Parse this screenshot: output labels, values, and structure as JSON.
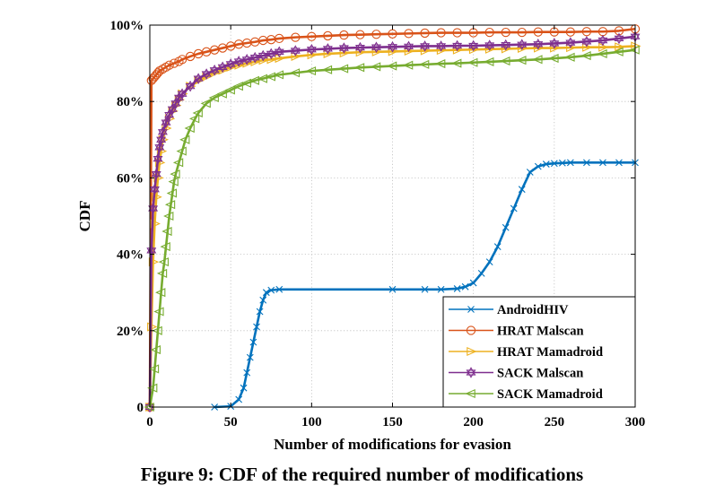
{
  "figure": {
    "caption": "Figure 9: CDF of the required number of modifications"
  },
  "chart_data": {
    "type": "line",
    "xlabel": "Number of modifications for evasion",
    "ylabel": "CDF",
    "xlim": [
      0,
      300
    ],
    "ylim": [
      0,
      100
    ],
    "x_ticks": [
      0,
      50,
      100,
      150,
      200,
      250,
      300
    ],
    "y_ticks": [
      0,
      20,
      40,
      60,
      80,
      100
    ],
    "x_tick_labels": [
      "0",
      "50",
      "100",
      "150",
      "200",
      "250",
      "300"
    ],
    "y_tick_labels": [
      "0",
      "20%",
      "40%",
      "60%",
      "80%",
      "100%"
    ],
    "grid": true,
    "legend_position": "bottom-right",
    "series": [
      {
        "name": "AndroidHIV",
        "color": "#0072BD",
        "marker": "x",
        "x": [
          40,
          50,
          55,
          58,
          60,
          62,
          64,
          66,
          68,
          70,
          72,
          75,
          80,
          150,
          170,
          180,
          190,
          195,
          200,
          205,
          210,
          215,
          220,
          225,
          230,
          235,
          240,
          245,
          250,
          255,
          260,
          270,
          280,
          290,
          300
        ],
        "y": [
          0,
          0.2,
          2,
          5,
          9,
          13,
          17,
          21,
          25,
          28,
          30,
          30.6,
          30.8,
          30.8,
          30.8,
          30.8,
          31,
          31.5,
          32.5,
          35,
          38,
          42,
          47,
          52,
          57,
          61.5,
          63,
          63.6,
          63.8,
          63.9,
          64,
          64,
          64,
          64,
          64
        ]
      },
      {
        "name": "HRAT Malscan",
        "color": "#D95319",
        "marker": "o",
        "x": [
          0,
          1,
          2,
          3,
          4,
          5,
          6,
          8,
          10,
          12,
          15,
          18,
          20,
          25,
          30,
          35,
          40,
          45,
          50,
          55,
          60,
          65,
          70,
          75,
          80,
          90,
          100,
          110,
          120,
          130,
          140,
          150,
          160,
          170,
          180,
          190,
          200,
          210,
          220,
          230,
          240,
          250,
          260,
          270,
          280,
          290,
          300
        ],
        "y": [
          0,
          85.5,
          86,
          86.5,
          87,
          87.5,
          88,
          88.5,
          89,
          89.5,
          90,
          90.5,
          91,
          91.8,
          92.5,
          93,
          93.5,
          94,
          94.5,
          95,
          95.3,
          95.6,
          96,
          96.2,
          96.5,
          96.8,
          97,
          97.2,
          97.4,
          97.5,
          97.6,
          97.7,
          97.8,
          97.9,
          98,
          98,
          98,
          98.1,
          98.1,
          98.1,
          98.2,
          98.2,
          98.2,
          98.3,
          98.3,
          98.5,
          99
        ]
      },
      {
        "name": "HRAT Mamadroid",
        "color": "#EDB120",
        "marker": "triangle-right",
        "x": [
          0,
          1,
          2,
          3,
          4,
          5,
          6,
          7,
          8,
          10,
          12,
          14,
          16,
          18,
          20,
          25,
          30,
          35,
          40,
          45,
          50,
          55,
          60,
          65,
          70,
          75,
          80,
          90,
          100,
          110,
          120,
          130,
          140,
          150,
          160,
          170,
          180,
          190,
          200,
          210,
          220,
          230,
          240,
          250,
          260,
          270,
          280,
          290,
          300
        ],
        "y": [
          0,
          21,
          38,
          48,
          55,
          60,
          64,
          67,
          70,
          73,
          75.5,
          77.5,
          79,
          80.5,
          82,
          84,
          85.5,
          86.5,
          87.5,
          88.2,
          89,
          89.5,
          90,
          90.4,
          90.8,
          91,
          91.3,
          91.8,
          92.2,
          92.5,
          92.7,
          92.9,
          93,
          93.1,
          93.2,
          93.3,
          93.4,
          93.5,
          93.6,
          93.7,
          93.8,
          93.9,
          94,
          94,
          94.1,
          94.2,
          94.2,
          94.3,
          94.5
        ]
      },
      {
        "name": "SACK Malscan",
        "color": "#7E2F8E",
        "marker": "hexagram",
        "x": [
          0,
          1,
          2,
          3,
          4,
          5,
          6,
          7,
          8,
          10,
          12,
          14,
          16,
          18,
          20,
          25,
          30,
          35,
          40,
          45,
          50,
          55,
          60,
          65,
          70,
          75,
          80,
          90,
          100,
          110,
          120,
          130,
          140,
          150,
          160,
          170,
          180,
          190,
          200,
          210,
          220,
          230,
          240,
          250,
          260,
          270,
          280,
          290,
          300
        ],
        "y": [
          0,
          41,
          52,
          57,
          61,
          65,
          68,
          70,
          72,
          74.5,
          76.5,
          78,
          79.5,
          81,
          82,
          84,
          86,
          87.2,
          88.2,
          89,
          89.8,
          90.5,
          91,
          91.5,
          92,
          92.5,
          93,
          93.3,
          93.6,
          93.8,
          94,
          94.1,
          94.2,
          94.3,
          94.4,
          94.5,
          94.5,
          94.6,
          94.6,
          94.7,
          94.8,
          94.9,
          95,
          95.2,
          95.4,
          95.7,
          96,
          96.5,
          97
        ]
      },
      {
        "name": "SACK Mamadroid",
        "color": "#77AC30",
        "marker": "triangle-left",
        "x": [
          0,
          2,
          3,
          4,
          5,
          6,
          7,
          8,
          9,
          10,
          11,
          12,
          13,
          14,
          15,
          16,
          18,
          20,
          22,
          25,
          28,
          30,
          35,
          40,
          45,
          50,
          55,
          60,
          65,
          70,
          75,
          80,
          90,
          100,
          110,
          120,
          130,
          140,
          150,
          160,
          170,
          180,
          190,
          200,
          210,
          220,
          230,
          240,
          250,
          260,
          270,
          280,
          290,
          300
        ],
        "y": [
          0,
          5,
          10,
          15,
          20,
          25,
          30,
          35,
          38,
          42,
          46,
          50,
          53,
          56,
          59,
          61,
          64,
          67,
          70,
          73,
          75.5,
          77,
          79.5,
          81,
          82,
          83,
          84,
          84.8,
          85.5,
          86,
          86.5,
          87,
          87.5,
          88,
          88.3,
          88.6,
          88.9,
          89.1,
          89.3,
          89.5,
          89.7,
          89.9,
          90,
          90.2,
          90.4,
          90.6,
          90.8,
          91,
          91.3,
          91.6,
          92,
          92.5,
          93,
          93.5
        ]
      }
    ]
  }
}
